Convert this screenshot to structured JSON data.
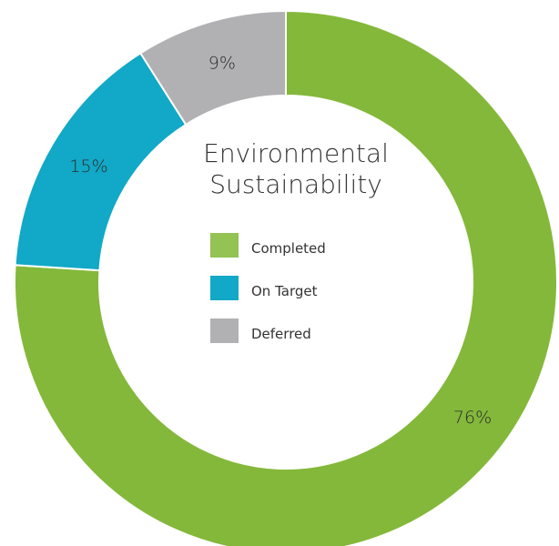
{
  "chart_data": {
    "type": "pie",
    "variant": "donut",
    "title_lines": [
      "Environmental",
      "Sustainability"
    ],
    "categories": [
      "Completed",
      "On Target",
      "Deferred"
    ],
    "values": [
      76,
      15,
      9
    ],
    "value_labels": [
      "76%",
      "15%",
      "9%"
    ],
    "colors": [
      "#84b83a",
      "#12a8c7",
      "#b1b1b4"
    ],
    "legend": {
      "placement": "center",
      "items": [
        {
          "label": "Completed",
          "color": "#92c353"
        },
        {
          "label": "On Target",
          "color": "#12a8c7"
        },
        {
          "label": "Deferred",
          "color": "#b1b1b4"
        }
      ]
    }
  }
}
